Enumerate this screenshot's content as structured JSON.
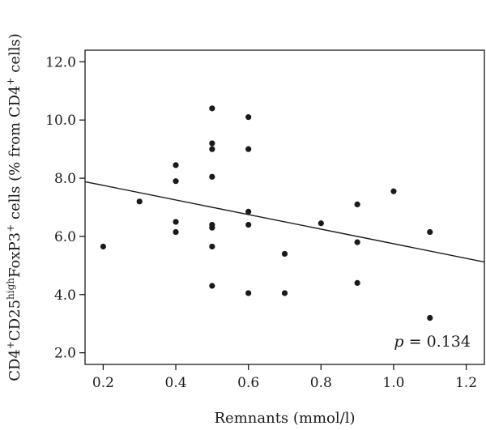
{
  "chart_data": {
    "type": "scatter",
    "xlabel": "Remnants (mmol/l)",
    "ylabel": {
      "parts": [
        {
          "text": "CD4",
          "sup": false
        },
        {
          "text": "+",
          "sup": true
        },
        {
          "text": "CD25",
          "sup": false
        },
        {
          "text": "high",
          "sup": true
        },
        {
          "text": "FoxP3",
          "sup": false
        },
        {
          "text": "+",
          "sup": true
        },
        {
          "text": " cells (% from CD4",
          "sup": false
        },
        {
          "text": "+",
          "sup": true
        },
        {
          "text": " cells)",
          "sup": false
        }
      ]
    },
    "xlim": [
      0.15,
      1.25
    ],
    "ylim": [
      1.6,
      12.4
    ],
    "x_ticks": [
      {
        "value": 0.2,
        "label": "0.2"
      },
      {
        "value": 0.4,
        "label": "0.4"
      },
      {
        "value": 0.6,
        "label": "0.6"
      },
      {
        "value": 0.8,
        "label": "0.8"
      },
      {
        "value": 1.0,
        "label": "1.0"
      },
      {
        "value": 1.2,
        "label": "1.2"
      }
    ],
    "y_ticks": [
      {
        "value": 2.0,
        "label": "2.0"
      },
      {
        "value": 4.0,
        "label": "4.0"
      },
      {
        "value": 6.0,
        "label": "6.0"
      },
      {
        "value": 8.0,
        "label": "8.0"
      },
      {
        "value": 10.0,
        "label": "10.0"
      },
      {
        "value": 12.0,
        "label": "12.0"
      }
    ],
    "points": [
      {
        "x": 0.2,
        "y": 5.65
      },
      {
        "x": 0.3,
        "y": 7.2
      },
      {
        "x": 0.4,
        "y": 8.45
      },
      {
        "x": 0.4,
        "y": 7.9
      },
      {
        "x": 0.4,
        "y": 6.5
      },
      {
        "x": 0.4,
        "y": 6.15
      },
      {
        "x": 0.5,
        "y": 10.4
      },
      {
        "x": 0.5,
        "y": 9.2
      },
      {
        "x": 0.5,
        "y": 9.0
      },
      {
        "x": 0.5,
        "y": 8.05
      },
      {
        "x": 0.5,
        "y": 6.4
      },
      {
        "x": 0.5,
        "y": 6.3
      },
      {
        "x": 0.5,
        "y": 5.65
      },
      {
        "x": 0.5,
        "y": 4.3
      },
      {
        "x": 0.6,
        "y": 10.1
      },
      {
        "x": 0.6,
        "y": 9.0
      },
      {
        "x": 0.6,
        "y": 6.85
      },
      {
        "x": 0.6,
        "y": 6.4
      },
      {
        "x": 0.6,
        "y": 4.05
      },
      {
        "x": 0.7,
        "y": 5.4
      },
      {
        "x": 0.7,
        "y": 4.05
      },
      {
        "x": 0.8,
        "y": 6.45
      },
      {
        "x": 0.9,
        "y": 7.1
      },
      {
        "x": 0.9,
        "y": 5.8
      },
      {
        "x": 0.9,
        "y": 4.4
      },
      {
        "x": 1.0,
        "y": 7.55
      },
      {
        "x": 1.1,
        "y": 6.15
      },
      {
        "x": 1.1,
        "y": 3.2
      }
    ],
    "trend_line": {
      "x": [
        0.15,
        1.25
      ],
      "y": [
        7.88,
        5.12
      ]
    },
    "annotation": {
      "italic": "p",
      "text": " = 0.134",
      "position": "bottom-right"
    },
    "grid": false,
    "legend": "none"
  }
}
